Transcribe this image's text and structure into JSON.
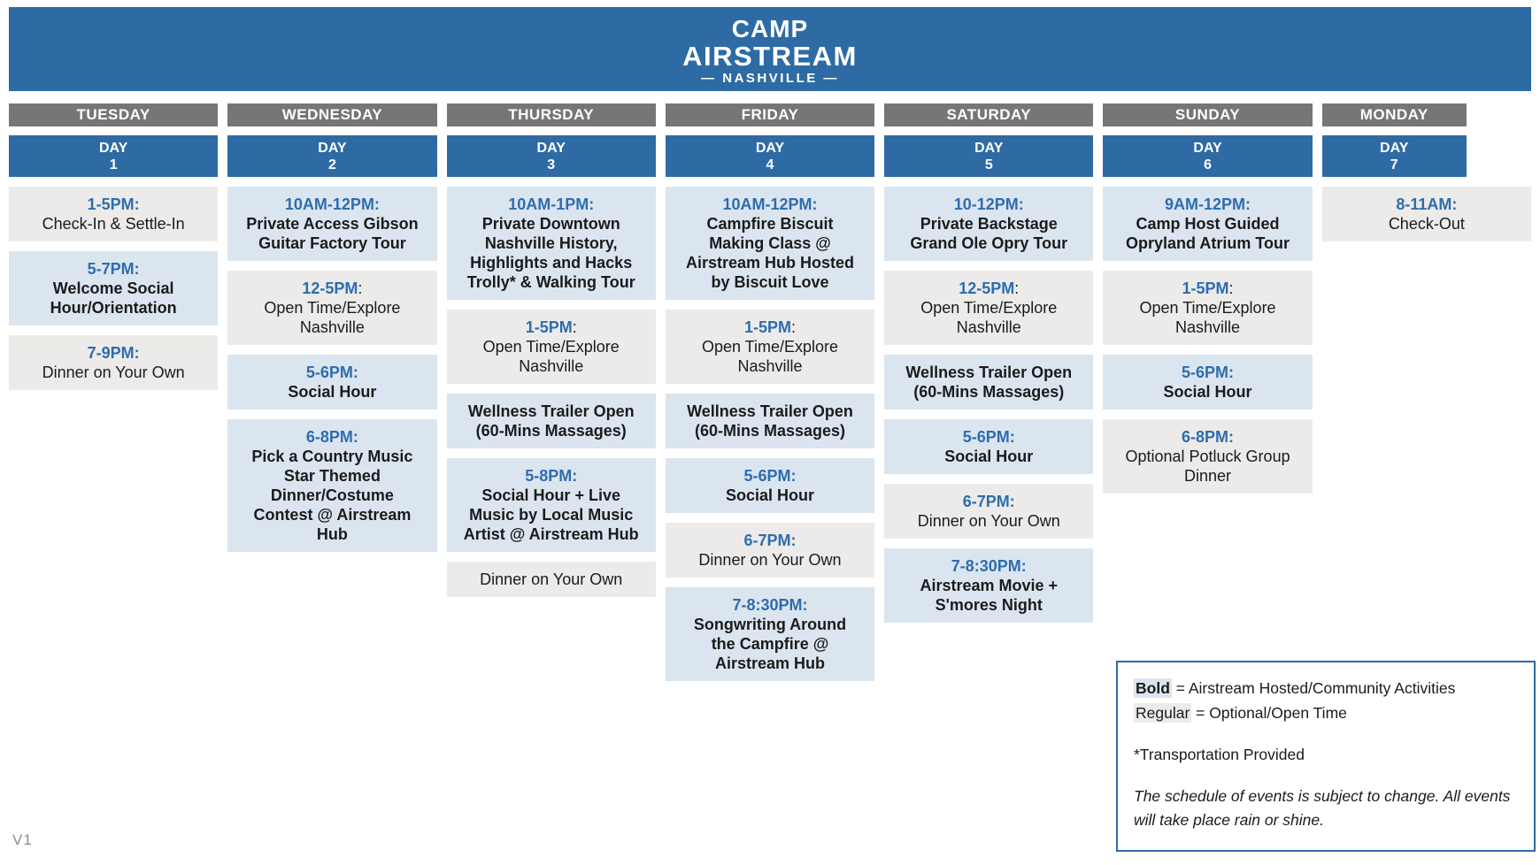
{
  "banner": {
    "line1": "CAMP",
    "line2": "AIRSTREAM",
    "line3": "— NASHVILLE —"
  },
  "colors": {
    "banner_blue": "#2e6ba4",
    "weekday_bar_gray": "#767674",
    "hosted_card_blue": "#dbe5f0",
    "optional_card_gray": "#ecebe9",
    "time_text_blue": "#2d6dae",
    "body_text_dark": "#1b1b1b",
    "legend_border_blue": "#2e6ba4"
  },
  "schedule": {
    "day_label": "DAY",
    "days": [
      {
        "weekday": "TUESDAY",
        "day_number": "1",
        "events": [
          {
            "time": "1-5PM:",
            "time_colon": "",
            "title": "Check-In & Settle-In",
            "type": "optional"
          },
          {
            "time": "5-7PM:",
            "time_colon": "",
            "title": "Welcome Social Hour/Orientation",
            "type": "hosted"
          },
          {
            "time": "7-9PM:",
            "time_colon": "",
            "title": "Dinner on Your Own",
            "type": "optional"
          }
        ]
      },
      {
        "weekday": "WEDNESDAY",
        "day_number": "2",
        "events": [
          {
            "time": "10AM-12PM:",
            "time_colon": "",
            "title": "Private Access Gibson Guitar Factory Tour",
            "type": "hosted"
          },
          {
            "time": "12-5PM",
            "time_colon": ":",
            "title": "Open Time/Explore Nashville",
            "type": "optional"
          },
          {
            "time": "5-6PM:",
            "time_colon": "",
            "title": "Social Hour",
            "type": "hosted"
          },
          {
            "time": "6-8PM:",
            "time_colon": "",
            "title": "Pick a Country Music Star Themed Dinner/Costume Contest @ Airstream Hub",
            "type": "hosted"
          }
        ]
      },
      {
        "weekday": "THURSDAY",
        "day_number": "3",
        "events": [
          {
            "time": "10AM-1PM:",
            "time_colon": "",
            "title": "Private Downtown Nashville History, Highlights and Hacks Trolly* & Walking Tour",
            "type": "hosted"
          },
          {
            "time": "1-5PM",
            "time_colon": ":",
            "title": "Open Time/Explore Nashville",
            "type": "optional"
          },
          {
            "time": "",
            "time_colon": "",
            "title": "Wellness Trailer Open (60-Mins Massages)",
            "type": "hosted"
          },
          {
            "time": "5-8PM:",
            "time_colon": "",
            "title": "Social Hour + Live Music by Local Music Artist @ Airstream Hub",
            "type": "hosted"
          },
          {
            "time": "",
            "time_colon": "",
            "title": "Dinner on Your Own",
            "type": "optional"
          }
        ]
      },
      {
        "weekday": "FRIDAY",
        "day_number": "4",
        "events": [
          {
            "time": "10AM-12PM:",
            "time_colon": "",
            "title": "Campfire Biscuit Making Class @ Airstream Hub Hosted by Biscuit Love",
            "type": "hosted"
          },
          {
            "time": "1-5PM",
            "time_colon": ":",
            "title": "Open Time/Explore Nashville",
            "type": "optional"
          },
          {
            "time": "",
            "time_colon": "",
            "title": "Wellness Trailer Open (60-Mins Massages)",
            "type": "hosted"
          },
          {
            "time": "5-6PM:",
            "time_colon": "",
            "title": "Social Hour",
            "type": "hosted"
          },
          {
            "time": "6-7PM:",
            "time_colon": "",
            "title": "Dinner on Your Own",
            "type": "optional"
          },
          {
            "time": "7-8:30PM:",
            "time_colon": "",
            "title": "Songwriting Around the Campfire @ Airstream Hub",
            "type": "hosted"
          }
        ]
      },
      {
        "weekday": "SATURDAY",
        "day_number": "5",
        "events": [
          {
            "time": "10-12PM:",
            "time_colon": "",
            "title": "Private Backstage Grand Ole Opry Tour",
            "type": "hosted"
          },
          {
            "time": "12-5PM",
            "time_colon": ":",
            "title": "Open Time/Explore Nashville",
            "type": "optional"
          },
          {
            "time": "",
            "time_colon": "",
            "title": "Wellness Trailer Open (60-Mins Massages)",
            "type": "hosted"
          },
          {
            "time": "5-6PM:",
            "time_colon": "",
            "title": "Social Hour",
            "type": "hosted"
          },
          {
            "time": "6-7PM:",
            "time_colon": "",
            "title": "Dinner on Your Own",
            "type": "optional"
          },
          {
            "time": "7-8:30PM:",
            "time_colon": "",
            "title": "Airstream Movie + S'mores Night",
            "type": "hosted"
          }
        ]
      },
      {
        "weekday": "SUNDAY",
        "day_number": "6",
        "events": [
          {
            "time": "9AM-12PM:",
            "time_colon": "",
            "title": "Camp Host Guided Opryland Atrium Tour",
            "type": "hosted"
          },
          {
            "time": "1-5PM",
            "time_colon": ":",
            "title": "Open Time/Explore Nashville",
            "type": "optional"
          },
          {
            "time": "5-6PM:",
            "time_colon": "",
            "title": "Social Hour",
            "type": "hosted"
          },
          {
            "time": "6-8PM:",
            "time_colon": "",
            "title": "Optional Potluck Group Dinner",
            "type": "optional"
          }
        ]
      },
      {
        "weekday": "MONDAY",
        "day_number": "7",
        "events": [
          {
            "time": "8-11AM:",
            "time_colon": "",
            "title": "Check-Out",
            "type": "optional"
          }
        ]
      }
    ]
  },
  "legend": {
    "bold_term": "Bold",
    "bold_definition": " = Airstream Hosted/Community Activities",
    "regular_term": "Regular",
    "regular_definition": " = Optional/Open Time",
    "transportation_note": "*Transportation Provided",
    "disclaimer": "The schedule of events is subject to change. All events will take place rain or shine."
  },
  "footer": {
    "version": "V1"
  }
}
